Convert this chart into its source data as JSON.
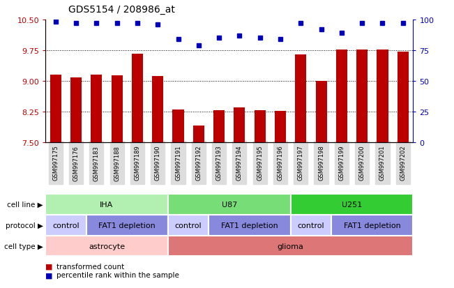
{
  "title": "GDS5154 / 208986_at",
  "samples": [
    "GSM997175",
    "GSM997176",
    "GSM997183",
    "GSM997188",
    "GSM997189",
    "GSM997190",
    "GSM997191",
    "GSM997192",
    "GSM997193",
    "GSM997194",
    "GSM997195",
    "GSM997196",
    "GSM997197",
    "GSM997198",
    "GSM997199",
    "GSM997200",
    "GSM997201",
    "GSM997202"
  ],
  "bar_values": [
    9.15,
    9.08,
    9.15,
    9.13,
    9.67,
    9.12,
    8.3,
    7.9,
    8.27,
    8.35,
    8.28,
    8.26,
    9.65,
    9.0,
    9.77,
    9.77,
    9.77,
    9.72
  ],
  "percentile_values": [
    98,
    97,
    97,
    97,
    97,
    96,
    84,
    79,
    85,
    87,
    85,
    84,
    97,
    92,
    89,
    97,
    97,
    97
  ],
  "bar_color": "#bb0000",
  "dot_color": "#0000bb",
  "ylim_left": [
    7.5,
    10.5
  ],
  "ylim_right": [
    0,
    100
  ],
  "yticks_left": [
    7.5,
    8.25,
    9.0,
    9.75,
    10.5
  ],
  "yticks_right": [
    0,
    25,
    50,
    75,
    100
  ],
  "grid_lines": [
    9.75,
    9.0,
    8.25
  ],
  "cell_line_labels": [
    {
      "text": "IHA",
      "start": 0,
      "end": 5,
      "color": "#b2f0b2"
    },
    {
      "text": "U87",
      "start": 6,
      "end": 11,
      "color": "#77dd77"
    },
    {
      "text": "U251",
      "start": 12,
      "end": 17,
      "color": "#33cc33"
    }
  ],
  "protocol_labels": [
    {
      "text": "control",
      "start": 0,
      "end": 1,
      "color": "#ccccff"
    },
    {
      "text": "FAT1 depletion",
      "start": 2,
      "end": 5,
      "color": "#8888dd"
    },
    {
      "text": "control",
      "start": 6,
      "end": 7,
      "color": "#ccccff"
    },
    {
      "text": "FAT1 depletion",
      "start": 8,
      "end": 11,
      "color": "#8888dd"
    },
    {
      "text": "control",
      "start": 12,
      "end": 13,
      "color": "#ccccff"
    },
    {
      "text": "FAT1 depletion",
      "start": 14,
      "end": 17,
      "color": "#8888dd"
    }
  ],
  "cell_type_labels": [
    {
      "text": "astrocyte",
      "start": 0,
      "end": 5,
      "color": "#ffcccc"
    },
    {
      "text": "glioma",
      "start": 6,
      "end": 17,
      "color": "#dd7777"
    }
  ],
  "row_labels": [
    "cell line",
    "protocol",
    "cell type"
  ],
  "legend": [
    {
      "label": "transformed count",
      "color": "#bb0000"
    },
    {
      "label": "percentile rank within the sample",
      "color": "#0000bb"
    }
  ],
  "bg_color": "#ffffff",
  "tick_bg": "#dddddd"
}
